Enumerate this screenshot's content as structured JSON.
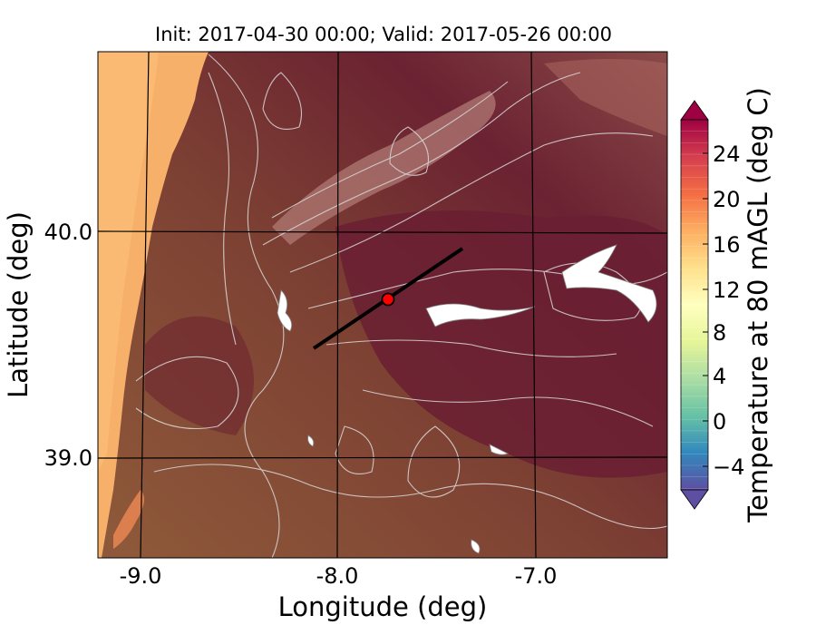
{
  "title": "Init: 2017-04-30 00:00; Valid: 2017-05-26 00:00",
  "axes": {
    "xlabel": "Longitude (deg)",
    "ylabel": "Latitude (deg)",
    "xticks": [
      "-9.0",
      "-8.0",
      "-7.0"
    ],
    "yticks": [
      "40.0",
      "39.0"
    ]
  },
  "colorbar": {
    "label": "Temperature at 80 mAGL (deg C)",
    "ticks": [
      "24",
      "20",
      "16",
      "12",
      "8",
      "4",
      "0",
      "−4"
    ],
    "extend": "both",
    "colormap": "Spectral_r",
    "colors": [
      "#5e4fa2",
      "#3288bd",
      "#66c2a5",
      "#abdda4",
      "#e6f598",
      "#ffffbf",
      "#fee08b",
      "#fdae61",
      "#f46d43",
      "#d53e4f",
      "#9e0142"
    ]
  },
  "map": {
    "extent": {
      "lon": [
        -9.25,
        -6.3
      ],
      "lat": [
        38.45,
        40.8
      ]
    },
    "ocean_color": "#f7b06a",
    "land_colors": [
      "#8b5a3c",
      "#7e3a36",
      "#6e2233"
    ],
    "contour_color": "#d9d9d9"
  },
  "overlay": {
    "transect_start": {
      "lon": -8.1,
      "lat": 39.5
    },
    "transect_end": {
      "lon": -7.4,
      "lat": 39.95
    },
    "site": {
      "lon": -7.75,
      "lat": 39.7
    },
    "site_color": "#ff0000"
  }
}
